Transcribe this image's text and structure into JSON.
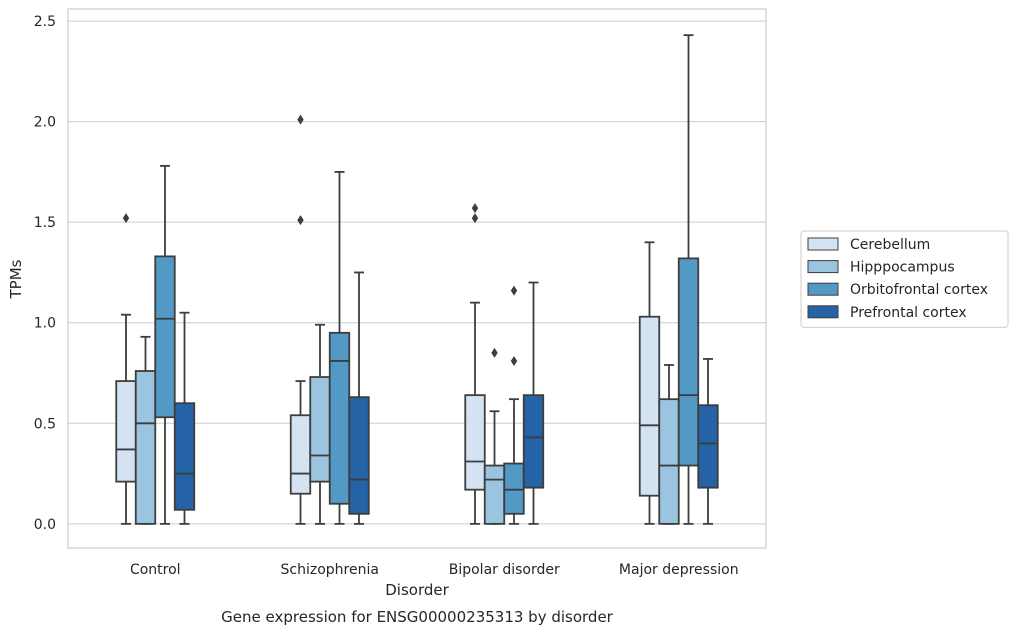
{
  "chart_data": {
    "type": "boxplot",
    "title": "",
    "caption": "Gene expression for ENSG00000235313 by disorder",
    "xlabel": "Disorder",
    "ylabel": "TPMs",
    "ylim": [
      -0.12,
      2.56
    ],
    "yticks": [
      "0.0",
      "0.5",
      "1.0",
      "1.5",
      "2.0",
      "2.5"
    ],
    "grid": "horizontal",
    "legend_position": "right",
    "categories": [
      "Control",
      "Schizophrenia",
      "Bipolar disorder",
      "Major depression"
    ],
    "series": [
      {
        "name": "Cerebellum",
        "color": "#d4e3f2",
        "boxes": [
          {
            "whislo": 0.0,
            "q1": 0.21,
            "med": 0.37,
            "q3": 0.71,
            "whishi": 1.04,
            "fliers": [
              1.52
            ]
          },
          {
            "whislo": 0.0,
            "q1": 0.15,
            "med": 0.25,
            "q3": 0.54,
            "whishi": 0.71,
            "fliers": [
              1.51,
              2.01
            ]
          },
          {
            "whislo": 0.0,
            "q1": 0.17,
            "med": 0.31,
            "q3": 0.64,
            "whishi": 1.1,
            "fliers": [
              1.52,
              1.57
            ]
          },
          {
            "whislo": 0.0,
            "q1": 0.14,
            "med": 0.49,
            "q3": 1.03,
            "whishi": 1.4,
            "fliers": []
          }
        ]
      },
      {
        "name": "Hipppocampus",
        "color": "#9ac4e0",
        "boxes": [
          {
            "whislo": 0.0,
            "q1": 0.0,
            "med": 0.5,
            "q3": 0.76,
            "whishi": 0.93,
            "fliers": []
          },
          {
            "whislo": 0.0,
            "q1": 0.21,
            "med": 0.34,
            "q3": 0.73,
            "whishi": 0.99,
            "fliers": []
          },
          {
            "whislo": 0.0,
            "q1": 0.0,
            "med": 0.22,
            "q3": 0.29,
            "whishi": 0.56,
            "fliers": [
              0.85
            ]
          },
          {
            "whislo": 0.0,
            "q1": 0.0,
            "med": 0.29,
            "q3": 0.62,
            "whishi": 0.79,
            "fliers": []
          }
        ]
      },
      {
        "name": "Orbitofrontal cortex",
        "color": "#5399c6",
        "boxes": [
          {
            "whislo": 0.0,
            "q1": 0.53,
            "med": 1.02,
            "q3": 1.33,
            "whishi": 1.78,
            "fliers": []
          },
          {
            "whislo": 0.0,
            "q1": 0.1,
            "med": 0.81,
            "q3": 0.95,
            "whishi": 1.75,
            "fliers": []
          },
          {
            "whislo": 0.0,
            "q1": 0.05,
            "med": 0.17,
            "q3": 0.3,
            "whishi": 0.62,
            "fliers": [
              0.81,
              1.16
            ]
          },
          {
            "whislo": 0.0,
            "q1": 0.29,
            "med": 0.64,
            "q3": 1.32,
            "whishi": 2.43,
            "fliers": []
          }
        ]
      },
      {
        "name": "Prefrontal cortex",
        "color": "#2363a6",
        "boxes": [
          {
            "whislo": 0.0,
            "q1": 0.07,
            "med": 0.25,
            "q3": 0.6,
            "whishi": 1.05,
            "fliers": []
          },
          {
            "whislo": 0.0,
            "q1": 0.05,
            "med": 0.22,
            "q3": 0.63,
            "whishi": 1.25,
            "fliers": []
          },
          {
            "whislo": 0.0,
            "q1": 0.18,
            "med": 0.43,
            "q3": 0.64,
            "whishi": 1.2,
            "fliers": []
          },
          {
            "whislo": 0.0,
            "q1": 0.18,
            "med": 0.4,
            "q3": 0.59,
            "whishi": 0.82,
            "fliers": []
          }
        ]
      }
    ]
  }
}
